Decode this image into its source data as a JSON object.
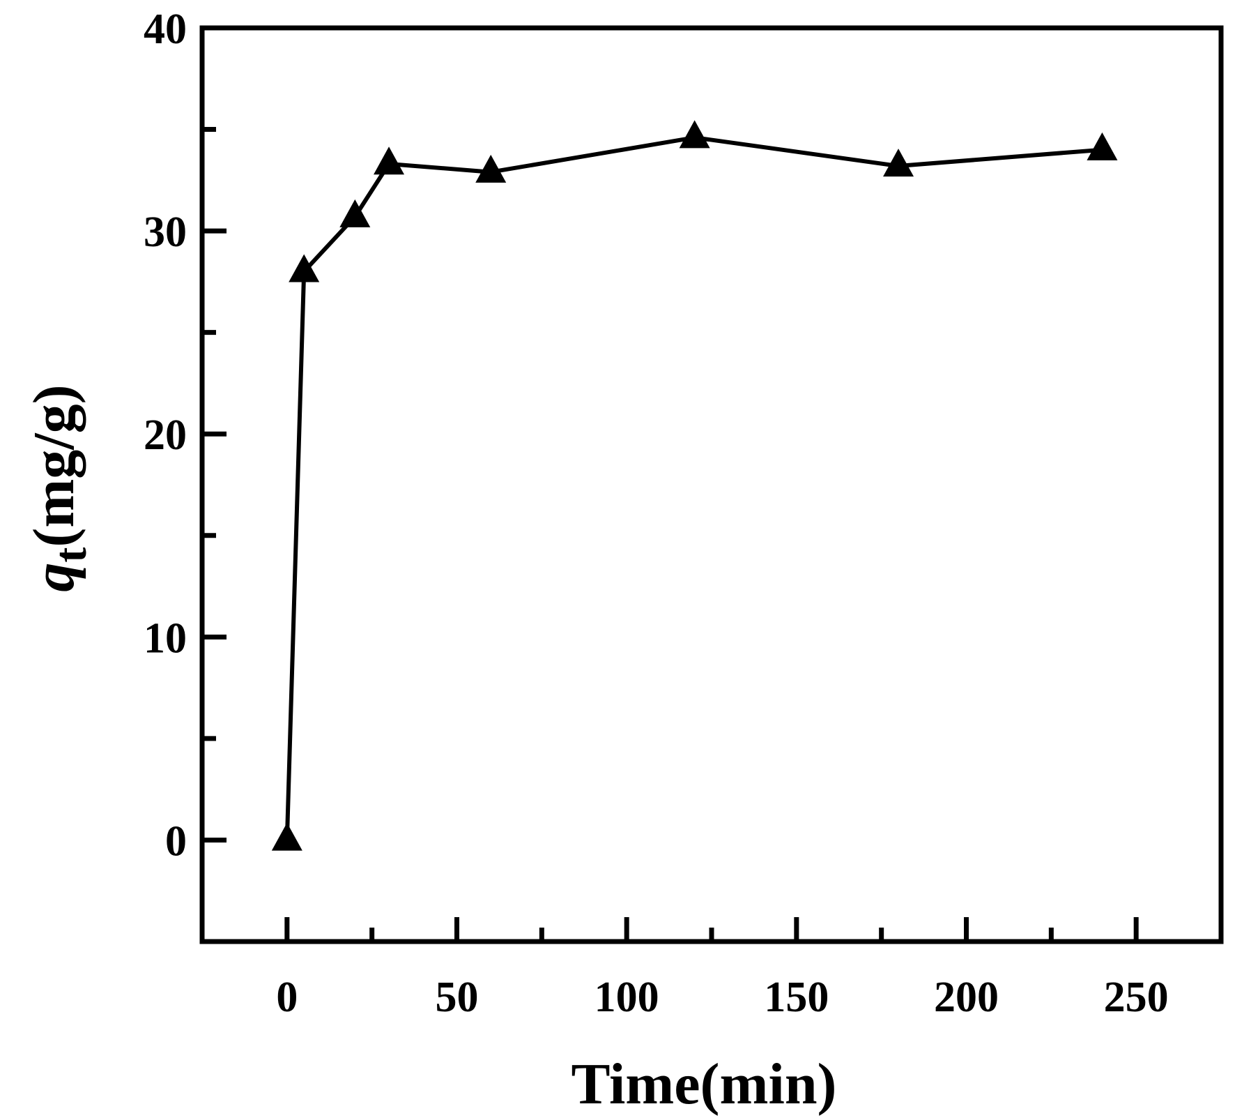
{
  "chart_data": {
    "type": "line",
    "title": "",
    "xlabel": "Time(min)",
    "ylabel": {
      "symbol": "q",
      "subscript": "t",
      "unit": "(mg/g)"
    },
    "xlim": [
      -25,
      275
    ],
    "ylim": [
      -5,
      40
    ],
    "x_ticks": [
      0,
      50,
      100,
      150,
      200,
      250
    ],
    "y_ticks": [
      0,
      10,
      20,
      30,
      40
    ],
    "x_minor_ticks": [
      25,
      75,
      125,
      175,
      225
    ],
    "y_minor_ticks": [
      5,
      15,
      25,
      35
    ],
    "grid": false,
    "legend": "none",
    "marker": "triangle",
    "colors": {
      "line": "#000000",
      "marker": "#000000"
    },
    "series": [
      {
        "x": [
          0,
          5,
          20,
          30,
          60,
          120,
          180,
          240
        ],
        "y": [
          0,
          28.0,
          30.7,
          33.3,
          32.9,
          34.6,
          33.2,
          34.0
        ]
      }
    ]
  }
}
